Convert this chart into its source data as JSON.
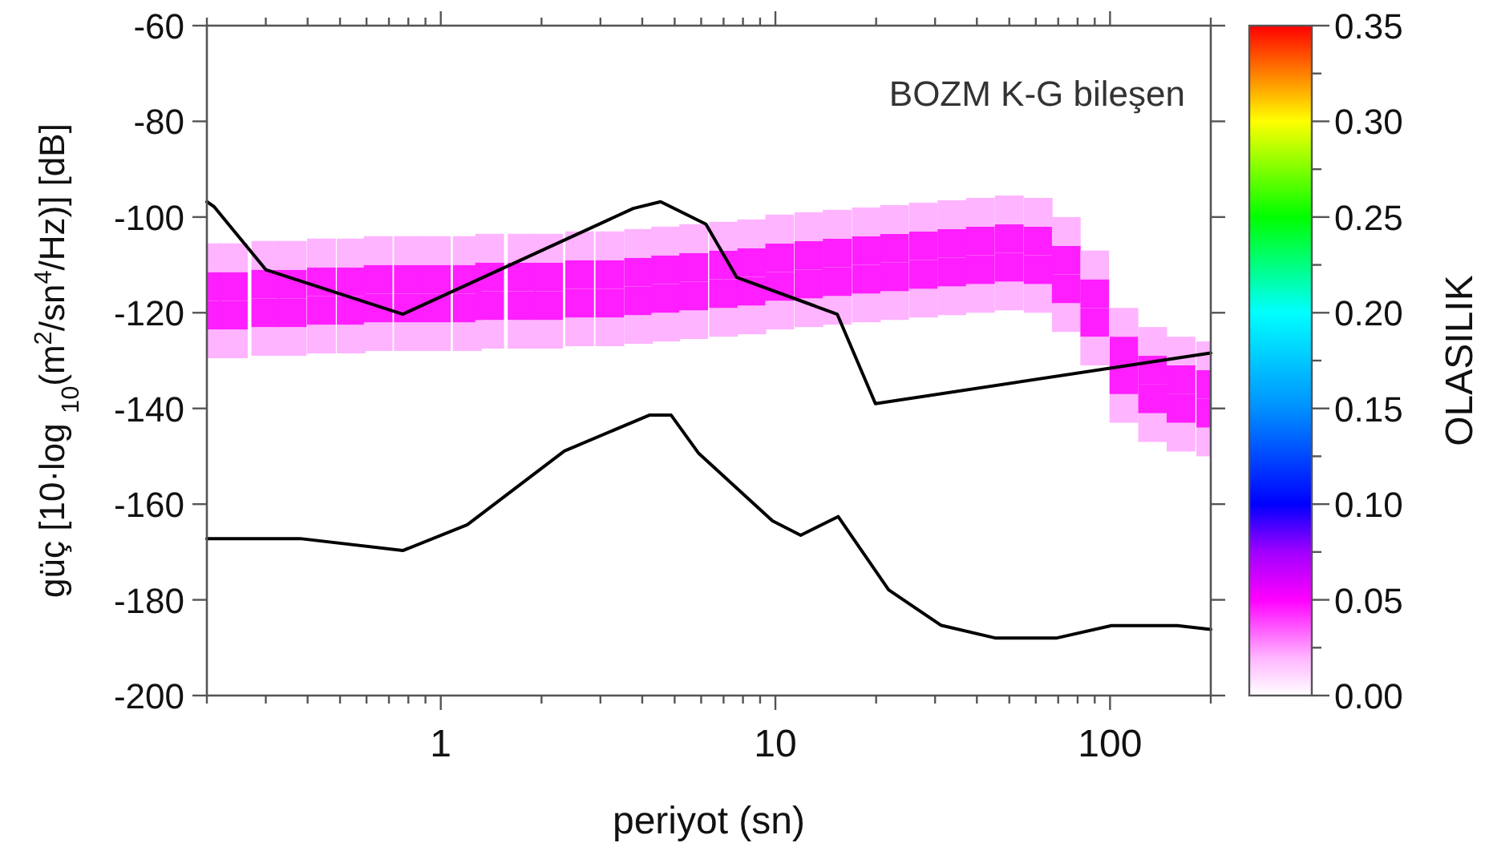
{
  "chart_data": {
    "type": "line",
    "xlabel": "periyot (sn)",
    "ylabel": "güç [10·log $_{10}$(m$^{2}$/sn$^{4}$/Hz)] [dB]",
    "clabel": "OLASILIK",
    "annotations": [
      "BOZM K-G bileşen"
    ],
    "log": "x",
    "grid": false,
    "xlim": [
      0.2,
      200
    ],
    "ylim": [
      -200,
      -60
    ],
    "xticks": [
      {
        "value": 0.2,
        "label": null
      },
      {
        "value": 0.3,
        "label": null
      },
      {
        "value": 0.4,
        "label": null
      },
      {
        "value": 0.5,
        "label": null
      },
      {
        "value": 0.6,
        "label": null
      },
      {
        "value": 0.7,
        "label": null
      },
      {
        "value": 0.8,
        "label": null
      },
      {
        "value": 0.9,
        "label": null
      },
      1,
      {
        "value": 2,
        "label": null
      },
      {
        "value": 3,
        "label": null
      },
      {
        "value": 4,
        "label": null
      },
      {
        "value": 5,
        "label": null
      },
      {
        "value": 6,
        "label": null
      },
      {
        "value": 7,
        "label": null
      },
      {
        "value": 8,
        "label": null
      },
      {
        "value": 9,
        "label": null
      },
      10,
      {
        "value": 20,
        "label": null
      },
      {
        "value": 30,
        "label": null
      },
      {
        "value": 40,
        "label": null
      },
      {
        "value": 50,
        "label": null
      },
      {
        "value": 60,
        "label": null
      },
      {
        "value": 70,
        "label": null
      },
      {
        "value": 80,
        "label": null
      },
      {
        "value": 90,
        "label": null
      },
      100,
      {
        "value": 200,
        "label": null
      }
    ],
    "yticks": [
      -200,
      -180,
      -160,
      -140,
      -120,
      -100,
      -80,
      -60
    ],
    "clim": [
      0,
      0.35
    ],
    "cticks": [
      {
        "value": 0,
        "label": "0.00"
      },
      {
        "value": 0.025,
        "label": null
      },
      {
        "value": 0.05,
        "label": "0.05"
      },
      {
        "value": 0.075,
        "label": null
      },
      {
        "value": 0.1,
        "label": "0.10"
      },
      {
        "value": 0.125,
        "label": null
      },
      {
        "value": 0.15,
        "label": "0.15"
      },
      {
        "value": 0.175,
        "label": null
      },
      {
        "value": 0.2,
        "label": "0.20"
      },
      {
        "value": 0.225,
        "label": null
      },
      {
        "value": 0.25,
        "label": "0.25"
      },
      {
        "value": 0.275,
        "label": null
      },
      {
        "value": 0.3,
        "label": "0.30"
      },
      {
        "value": 0.325,
        "label": null
      },
      {
        "value": 0.35,
        "label": "0.35"
      }
    ],
    "series": [
      {
        "type": "scatter",
        "marker": "square",
        "colors": [
          "#ffb4ff",
          "#ff1eff",
          "#ff1eff",
          "#ffb4ff",
          "#ffb4ff",
          "#ff1eff",
          "#ff1eff",
          "#ffb4ff",
          "#ffb4ff",
          "#ff1eff",
          "#ff1eff",
          "#ffb4ff",
          "#ffb4ff",
          "#ff1eff",
          "#ff1eff",
          "#ffb4ff",
          "#ffb4ff",
          "#ff1eff",
          "#ff1eff",
          "#ffb4ff",
          "#ffb4ff",
          "#ff1eff",
          "#ff1eff",
          "#ffb4ff",
          "#ffb4ff",
          "#ff1eff",
          "#ff1eff",
          "#ffb4ff",
          "#ffb4ff",
          "#ff1eff",
          "#ff1eff",
          "#ffb4ff",
          "#ffb4ff",
          "#ff1eff",
          "#ff1eff",
          "#ffb4ff",
          "#ffb4ff",
          "#ff1eff",
          "#ff1eff",
          "#ffb4ff",
          "#ffb4ff",
          "#ff1eff",
          "#ff1eff",
          "#ffb4ff",
          "#ffb4ff",
          "#ff1eff",
          "#ff1eff",
          "#ffb4ff",
          "#ffb4ff",
          "#ff1eff",
          "#ff1eff",
          "#ffb4ff",
          "#ffb4ff",
          "#ff1eff",
          "#ff1eff",
          "#ffb4ff",
          "#ffb4ff",
          "#ff1eff",
          "#ff1eff",
          "#ffb4ff",
          "#ffb4ff",
          "#ff1eff",
          "#ff1eff",
          "#ffb4ff",
          "#ffb4ff",
          "#ff1eff",
          "#ff1eff",
          "#ffb4ff",
          "#ffb4ff",
          "#ff1eff",
          "#ff1eff",
          "#ffb4ff",
          "#ffb4ff",
          "#ff1eff",
          "#ff1eff",
          "#ffb4ff",
          "#ffb4ff",
          "#ff1eff",
          "#ff1eff",
          "#ffb4ff",
          "#ffb4ff",
          "#ff1eff",
          "#ff1eff",
          "#ffb4ff",
          "#ffb4ff",
          "#ff1eff",
          "#ff1eff",
          "#ffb4ff",
          "#ffb4ff",
          "#ff1eff",
          "#ff1eff",
          "#ffb4ff",
          "#ffb4ff",
          "#ff1eff",
          "#ff1eff",
          "#ffb4ff",
          "#ffb4ff",
          "#ff1eff",
          "#ff1eff",
          "#ffb4ff",
          "#ffb4ff",
          "#ff1eff",
          "#ff1eff",
          "#ffb4ff",
          "#ffb4ff",
          "#ff1eff",
          "#ff1eff",
          "#ffb4ff",
          "#ffb4ff",
          "#ff1eff",
          "#ff1eff",
          "#ffb4ff",
          "#ffb4ff",
          "#ff1eff",
          "#ff1eff",
          "#ffb4ff",
          "#ffb4ff",
          "#ff1eff",
          "#ff1eff",
          "#ffb4ff",
          "#ffb4ff",
          "#ff1eff",
          "#ff1eff",
          "#ffb4ff",
          "#ffb4ff",
          "#ff1eff",
          "#ff1eff",
          "#ffb4ff",
          "#ffb4ff",
          "#ff1eff",
          "#ff1eff",
          "#ffb4ff",
          "#ffb4ff",
          "#ff1eff",
          "#ff1eff",
          "#ffb4ff",
          "#ffb4ff",
          "#ff1eff",
          "#ff1eff",
          "#ffb4ff",
          "#ffb4ff",
          "#ff1eff",
          "#ff1eff",
          "#ffb4ff"
        ],
        "x": [
          0.2,
          0.2,
          0.2,
          0.2,
          0.24,
          0.24,
          0.24,
          0.24,
          0.3,
          0.3,
          0.3,
          0.3,
          0.36,
          0.36,
          0.36,
          0.36,
          0.44,
          0.44,
          0.44,
          0.44,
          0.54,
          0.54,
          0.54,
          0.54,
          0.65,
          0.65,
          0.65,
          0.65,
          0.8,
          0.8,
          0.8,
          0.8,
          0.97,
          0.97,
          0.97,
          0.97,
          1.2,
          1.2,
          1.2,
          1.2,
          1.4,
          1.4,
          1.4,
          1.4,
          1.75,
          1.75,
          1.75,
          1.75,
          2.1,
          2.1,
          2.1,
          2.1,
          2.6,
          2.6,
          2.6,
          2.6,
          3.2,
          3.2,
          3.2,
          3.2,
          3.9,
          3.9,
          3.9,
          3.9,
          4.7,
          4.7,
          4.7,
          4.7,
          5.7,
          5.7,
          5.7,
          5.7,
          7,
          7,
          7,
          7,
          8.5,
          8.5,
          8.5,
          8.5,
          10.3,
          10.3,
          10.3,
          10.3,
          12.6,
          12.6,
          12.6,
          12.6,
          15.3,
          15.3,
          15.3,
          15.3,
          18.7,
          18.7,
          18.7,
          18.7,
          22.7,
          22.7,
          22.7,
          22.7,
          27.7,
          27.7,
          27.7,
          27.7,
          33.7,
          33.7,
          33.7,
          33.7,
          41,
          41,
          41,
          41,
          50,
          50,
          50,
          50,
          61,
          61,
          61,
          61,
          74,
          74,
          74,
          74,
          90,
          90,
          90,
          90,
          110,
          110,
          110,
          110,
          134,
          134,
          134,
          134,
          163,
          163,
          163,
          163,
          200,
          200,
          200,
          200
        ],
        "values": [
          -126.5,
          -120.5,
          -114.5,
          -108.5,
          -126.5,
          -120.5,
          -114.5,
          -108.5,
          -126,
          -120,
          -114,
          -108,
          -126,
          -120,
          -114,
          -108,
          -125.5,
          -119.5,
          -113.5,
          -107.5,
          -125.5,
          -119.5,
          -113.5,
          -107.5,
          -125,
          -119,
          -113,
          -107,
          -125,
          -119,
          -113,
          -107,
          -125,
          -119,
          -113,
          -107,
          -125,
          -119,
          -113,
          -107,
          -124.5,
          -118.5,
          -112.5,
          -106.5,
          -124.5,
          -118.5,
          -112.5,
          -106.5,
          -124.5,
          -118.5,
          -112.5,
          -106.5,
          -124,
          -118,
          -112,
          -106,
          -124,
          -118,
          -112,
          -106,
          -123.5,
          -117.5,
          -111.5,
          -105.5,
          -123,
          -117,
          -111,
          -105,
          -122.5,
          -116.5,
          -110.5,
          -104.5,
          -122,
          -116,
          -110,
          -104,
          -121.5,
          -115.5,
          -109.5,
          -103.5,
          -120.5,
          -114.5,
          -108.5,
          -102.5,
          -120,
          -114,
          -108,
          -102,
          -119.5,
          -113.5,
          -107.5,
          -101.5,
          -119,
          -113,
          -107,
          -101,
          -118.5,
          -112.5,
          -106.5,
          -100.5,
          -118,
          -112,
          -106,
          -100,
          -117.5,
          -111.5,
          -105.5,
          -99.5,
          -117,
          -111,
          -105,
          -99,
          -116.5,
          -110.5,
          -104.5,
          -98.5,
          -117,
          -111,
          -105,
          -99,
          -121,
          -115,
          -109,
          -103,
          -128,
          -122,
          -116,
          -110,
          -140,
          -134,
          -128,
          -122,
          -144,
          -138,
          -132,
          -126,
          -146,
          -140,
          -134,
          -128,
          -147,
          -141,
          -135,
          -129
        ],
        "cvalues": [
          0.02,
          0.045,
          0.045,
          0.02,
          0.02,
          0.045,
          0.045,
          0.02,
          0.02,
          0.045,
          0.045,
          0.02,
          0.02,
          0.045,
          0.045,
          0.02,
          0.02,
          0.045,
          0.045,
          0.02,
          0.02,
          0.045,
          0.045,
          0.02,
          0.02,
          0.045,
          0.045,
          0.02,
          0.02,
          0.045,
          0.045,
          0.02,
          0.02,
          0.045,
          0.045,
          0.02,
          0.02,
          0.045,
          0.045,
          0.02,
          0.02,
          0.045,
          0.045,
          0.02,
          0.02,
          0.045,
          0.045,
          0.02,
          0.02,
          0.045,
          0.045,
          0.02,
          0.02,
          0.045,
          0.045,
          0.02,
          0.02,
          0.045,
          0.045,
          0.02,
          0.02,
          0.045,
          0.045,
          0.02,
          0.02,
          0.045,
          0.045,
          0.02,
          0.02,
          0.045,
          0.045,
          0.02,
          0.02,
          0.045,
          0.045,
          0.02,
          0.02,
          0.045,
          0.045,
          0.02,
          0.02,
          0.045,
          0.045,
          0.02,
          0.02,
          0.045,
          0.045,
          0.02,
          0.02,
          0.045,
          0.045,
          0.02,
          0.02,
          0.045,
          0.045,
          0.02,
          0.02,
          0.045,
          0.045,
          0.02,
          0.02,
          0.045,
          0.045,
          0.02,
          0.02,
          0.045,
          0.045,
          0.02,
          0.02,
          0.045,
          0.045,
          0.02,
          0.02,
          0.045,
          0.045,
          0.02,
          0.02,
          0.045,
          0.045,
          0.02,
          0.02,
          0.045,
          0.045,
          0.02,
          0.02,
          0.045,
          0.045,
          0.02,
          0.02,
          0.045,
          0.045,
          0.02,
          0.02,
          0.045,
          0.045,
          0.02,
          0.02,
          0.045,
          0.045,
          0.02,
          0.02,
          0.045,
          0.045,
          0.02
        ]
      },
      {
        "color": "#000000",
        "line_style": "solid",
        "x": [
          0.2,
          0.21,
          0.3,
          0.77,
          3.76,
          4.54,
          6.2,
          7.66,
          15.3,
          19.9,
          200
        ],
        "values": [
          -96.8,
          -97.8,
          -111,
          -120.3,
          -98.2,
          -96.8,
          -101.5,
          -112.6,
          -120.3,
          -139,
          -128.4
        ]
      },
      {
        "color": "#000000",
        "line_style": "solid",
        "x": [
          0.2,
          0.38,
          0.77,
          1.2,
          2.34,
          4.2,
          4.88,
          5.9,
          9.8,
          11.9,
          15.4,
          21.8,
          31.2,
          45.6,
          69,
          101,
          159,
          200
        ],
        "values": [
          -167.2,
          -167.2,
          -169.7,
          -164.3,
          -148.9,
          -141.4,
          -141.4,
          -149.4,
          -163.5,
          -166.5,
          -162.6,
          -177.9,
          -185.3,
          -188,
          -188,
          -185.4,
          -185.4,
          -186.2
        ]
      }
    ]
  }
}
